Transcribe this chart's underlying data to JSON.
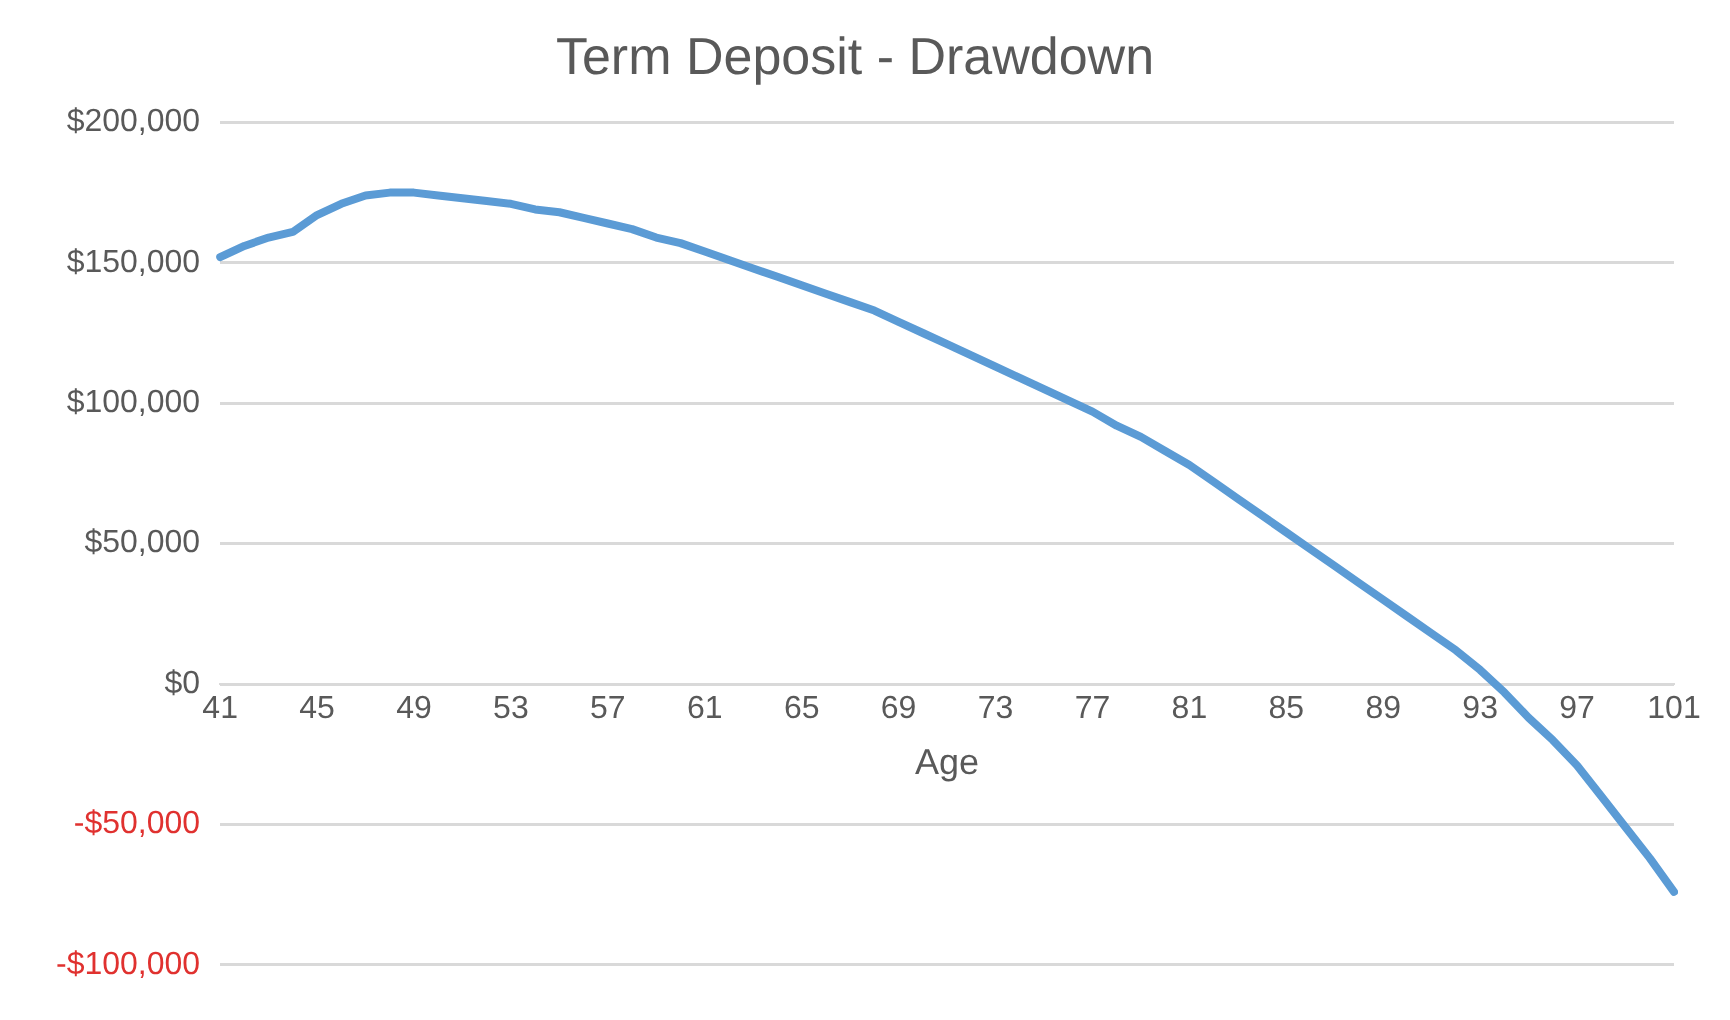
{
  "chart_data": {
    "type": "line",
    "title": "Term Deposit - Drawdown",
    "xlabel": "Age",
    "categories": [
      "41",
      null,
      null,
      null,
      "45",
      null,
      null,
      null,
      "49",
      null,
      null,
      null,
      "53",
      null,
      null,
      null,
      "57",
      null,
      null,
      null,
      "61",
      null,
      null,
      null,
      "65",
      null,
      null,
      null,
      "69",
      null,
      null,
      null,
      "73",
      null,
      null,
      null,
      "77",
      null,
      null,
      null,
      "81",
      null,
      null,
      null,
      "85",
      null,
      null,
      null,
      "89",
      null,
      null,
      null,
      "93",
      null,
      null,
      null,
      "97",
      null,
      null,
      null,
      "101"
    ],
    "series": [
      {
        "color": "#5b9bd5",
        "values": [
          152000,
          156000,
          159000,
          161000,
          167000,
          171000,
          174000,
          175000,
          175000,
          174000,
          173000,
          172000,
          171000,
          169000,
          168000,
          166000,
          164000,
          162000,
          159000,
          157000,
          154000,
          151000,
          148000,
          145000,
          142000,
          139000,
          136000,
          133000,
          129000,
          125000,
          121000,
          117000,
          113000,
          109000,
          105000,
          101000,
          97000,
          92000,
          88000,
          83000,
          78000,
          72000,
          66000,
          60000,
          54000,
          48000,
          42000,
          36000,
          30000,
          24000,
          18000,
          12000,
          5000,
          -3000,
          -12000,
          -20000,
          -29000,
          -40000,
          -51000,
          -62000,
          -74000
        ]
      }
    ],
    "ylim": [
      -100000,
      200000
    ],
    "yticks": [
      {
        "value": 200000,
        "label": "$200,000"
      },
      {
        "value": 150000,
        "label": "$150,000"
      },
      {
        "value": 100000,
        "label": "$100,000"
      },
      {
        "value": 50000,
        "label": "$50,000"
      },
      {
        "value": 0,
        "label": "$0"
      },
      {
        "value": -50000,
        "label": "-$50,000"
      },
      {
        "value": -100000,
        "label": "-$100,000"
      }
    ],
    "grid": "y",
    "legend": false,
    "marker": "none",
    "line_style": "solid"
  }
}
